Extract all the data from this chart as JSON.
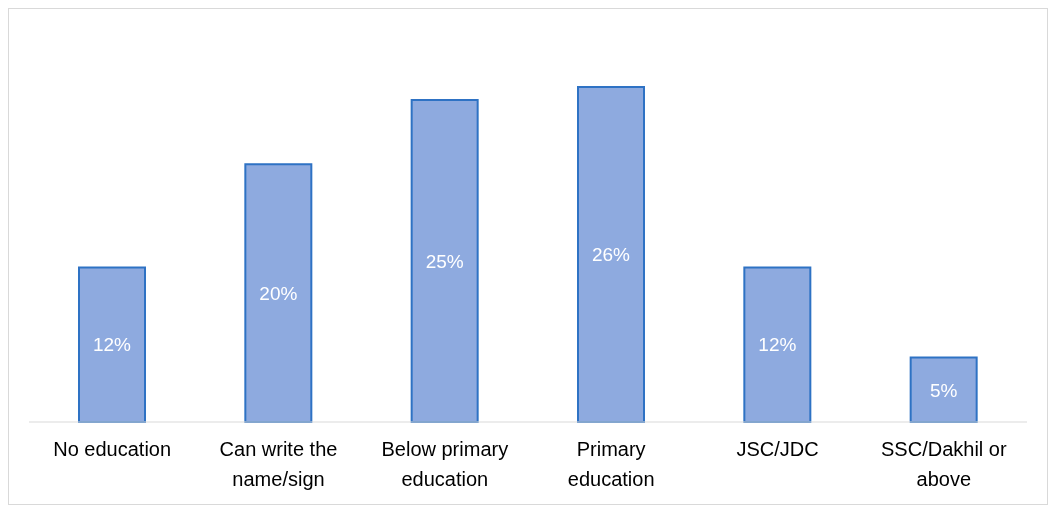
{
  "chart_data": {
    "type": "bar",
    "categories": [
      "No education",
      "Can write the name/sign",
      "Below primary education",
      "Primary education",
      "JSC/JDC",
      "SSC/Dakhil or above"
    ],
    "values": [
      12,
      20,
      25,
      26,
      12,
      5
    ],
    "value_labels": [
      "12%",
      "20%",
      "25%",
      "26%",
      "12%",
      "5%"
    ],
    "color": "#8eaadf"
  }
}
